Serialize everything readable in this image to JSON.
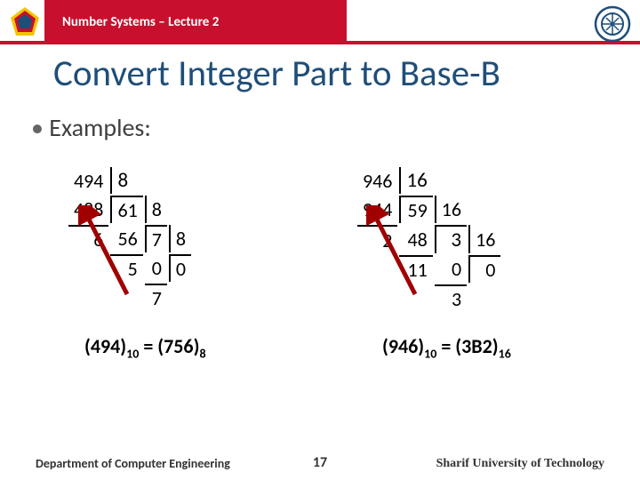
{
  "header": {
    "lecture": "Number Systems – Lecture 2"
  },
  "title": "Convert Integer Part to Base-B",
  "bullet": "Examples:",
  "left_div": {
    "r0": [
      "494",
      "8",
      "",
      ""
    ],
    "r1": [
      "488",
      "61",
      "8",
      ""
    ],
    "r2": [
      "6",
      "56",
      "7",
      "8"
    ],
    "r3": [
      "",
      "5",
      "0",
      "0"
    ],
    "r4": [
      "",
      "",
      "7",
      ""
    ]
  },
  "right_div": {
    "r0": [
      "946",
      "16",
      "",
      "",
      ""
    ],
    "r1": [
      "944",
      "59",
      "16",
      "",
      ""
    ],
    "r2": [
      "2",
      "48",
      "3",
      "16",
      ""
    ],
    "r3": [
      "",
      "11",
      "0",
      "0",
      ""
    ],
    "r4": [
      "",
      "",
      "3",
      "",
      ""
    ]
  },
  "result_left": "(494)<sub>10</sub> = (756)<sub>8</sub>",
  "result_right": "(946)<sub>10</sub> = (3B2)<sub>16</sub>",
  "footer": {
    "dept": "Department of Computer Engineering",
    "page": "17",
    "uni": "Sharif University of Technology"
  },
  "colors": {
    "header_red": "#c8102e",
    "title_blue": "#1f4e79",
    "arrow": "#a00000"
  }
}
